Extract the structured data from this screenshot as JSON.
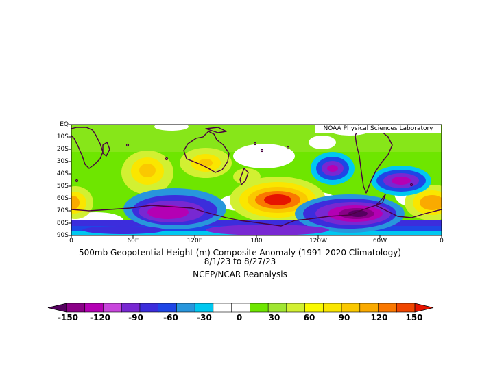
{
  "lab": "NOAA Physical Sciences Laboratory",
  "title": "500mb Geopotential Height (m) Composite Anomaly (1991-2020 Climatology)",
  "dates": "8/1/23  to 8/27/23",
  "source": "NCEP/NCAR Reanalysis",
  "lat_labels": [
    "EQ",
    "10S",
    "20S",
    "30S",
    "40S",
    "50S",
    "60S",
    "70S",
    "80S",
    "90S"
  ],
  "lon_labels": [
    "0",
    "60E",
    "120E",
    "180",
    "120W",
    "60W",
    "0"
  ],
  "colorbar": {
    "tick_labels": [
      "-150",
      "-120",
      "-90",
      "-60",
      "-30",
      "0",
      "30",
      "60",
      "90",
      "120",
      "150"
    ],
    "colors": [
      "#55005f",
      "#8a0087",
      "#b400b4",
      "#c846dc",
      "#7828d2",
      "#3c2ddc",
      "#1e46e6",
      "#2896dc",
      "#00c8f0",
      "#ffffff",
      "#ffffff",
      "#6ee600",
      "#a0e632",
      "#d2f032",
      "#fafa00",
      "#fae600",
      "#fac800",
      "#faaa00",
      "#fa7800",
      "#f04600",
      "#e61400"
    ]
  },
  "chart_data": {
    "type": "heatmap",
    "variable": "500mb geopotential height composite anomaly",
    "units": "m",
    "x_range": [
      "0",
      "0"
    ],
    "y_range": [
      "EQ",
      "90S"
    ],
    "levels": [
      -150,
      -135,
      -120,
      -105,
      -90,
      -75,
      -60,
      -45,
      -30,
      -15,
      0,
      15,
      30,
      45,
      60,
      75,
      90,
      105,
      120,
      135,
      150
    ],
    "features": [
      {
        "lon": 190,
        "lat": -62,
        "anomaly": 135
      },
      {
        "lon": 260,
        "lat": -70,
        "anomaly": -150
      },
      {
        "lon": 100,
        "lat": -65,
        "anomaly": -120
      },
      {
        "lon": 238,
        "lat": -38,
        "anomaly": -100
      },
      {
        "lon": 320,
        "lat": -48,
        "anomaly": -110
      },
      {
        "lon": 60,
        "lat": -40,
        "anomaly": 90
      },
      {
        "lon": 120,
        "lat": -33,
        "anomaly": 60
      },
      {
        "lon": 0,
        "lat": -63,
        "anomaly": 75
      },
      {
        "lon": 345,
        "lat": -65,
        "anomaly": 90
      },
      {
        "lon": 150,
        "lat": -85,
        "anomaly": -75
      }
    ]
  }
}
